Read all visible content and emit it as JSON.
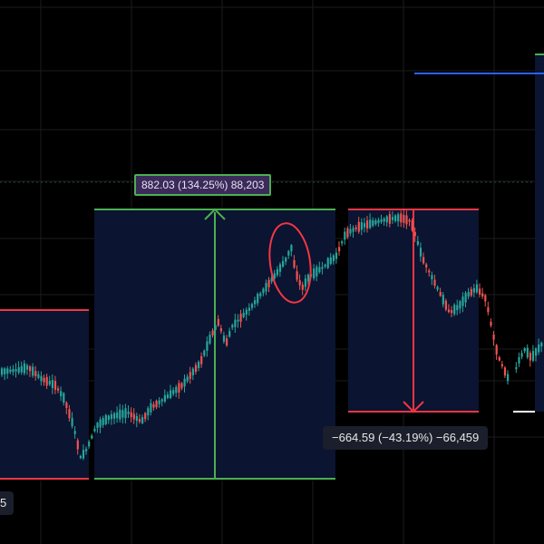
{
  "colors": {
    "background": "#000000",
    "grid": "#1b1b1b",
    "range_fill": "#0b1430",
    "bull": "#26a69a",
    "bear": "#ef5350",
    "gain_line": "#4caf50",
    "loss_line": "#f23645",
    "blue_line": "#2962ff"
  },
  "measurements": {
    "left_partial": "5",
    "gain": "882.03 (134.25%) 88,203",
    "loss": "−664.59 (−43.19%) −66,459"
  }
}
